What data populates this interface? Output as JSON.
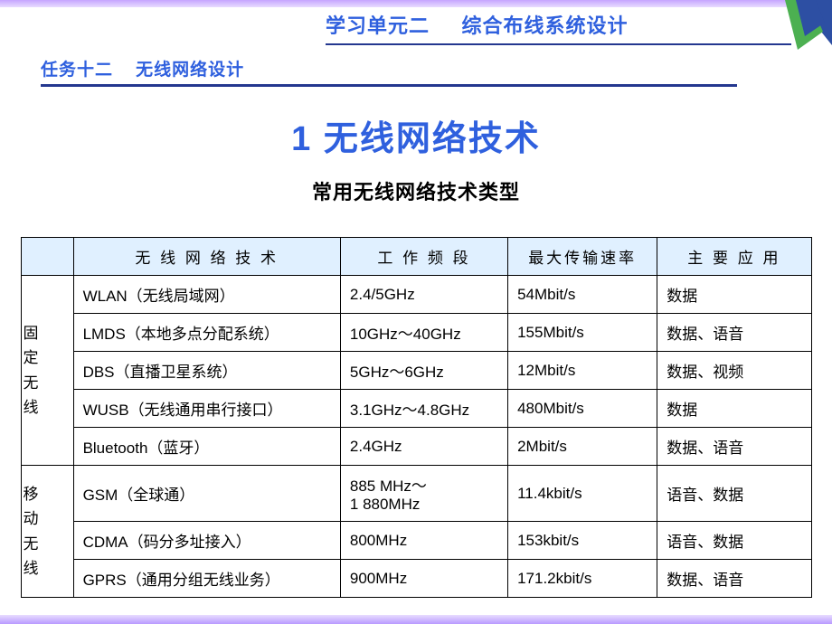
{
  "header": {
    "unit_title": "学习单元二     综合布线系统设计",
    "task_title": "任务十二    无线网络设计"
  },
  "content": {
    "main_title": "1  无线网络技术",
    "subtitle": "常用无线网络技术类型"
  },
  "table": {
    "headers": {
      "col1": "",
      "col2": "无 线 网 络 技 术",
      "col3": "工 作 频 段",
      "col4": "最大传输速率",
      "col5": "主 要 应 用"
    },
    "groups": [
      {
        "label": "固定无线",
        "rows": [
          {
            "tech": "WLAN（无线局域网）",
            "band": "2.4/5GHz",
            "rate": "54Mbit/s",
            "app": "数据"
          },
          {
            "tech": "LMDS（本地多点分配系统）",
            "band": "10GHz～40GHz",
            "rate": "155Mbit/s",
            "app": "数据、语音"
          },
          {
            "tech": "DBS（直播卫星系统）",
            "band": "5GHz～6GHz",
            "rate": "12Mbit/s",
            "app": "数据、视频"
          },
          {
            "tech": "WUSB（无线通用串行接口）",
            "band": "3.1GHz～4.8GHz",
            "rate": "480Mbit/s",
            "app": "数据"
          },
          {
            "tech": "Bluetooth（蓝牙）",
            "band": "2.4GHz",
            "rate": "2Mbit/s",
            "app": "数据、语音"
          }
        ]
      },
      {
        "label": "移动无线",
        "rows": [
          {
            "tech": "GSM（全球通）",
            "band": "885 MHz～\n1 880MHz",
            "rate": "11.4kbit/s",
            "app": "语音、数据"
          },
          {
            "tech": "CDMA（码分多址接入）",
            "band": "800MHz",
            "rate": "153kbit/s",
            "app": "语音、数据"
          },
          {
            "tech": "GPRS（通用分组无线业务）",
            "band": "900MHz",
            "rate": "171.2kbit/s",
            "app": "数据、语音"
          }
        ]
      }
    ]
  },
  "colors": {
    "title_color": "#2f60de",
    "header_bg": "#e0f0ff",
    "border_color": "#000000",
    "accent_line": "#24378f",
    "ornament_green": "#4cb051",
    "ornament_blue": "#2d4fa3",
    "gradient_purple_light": "#e8dcff",
    "gradient_purple": "#b99aff"
  }
}
